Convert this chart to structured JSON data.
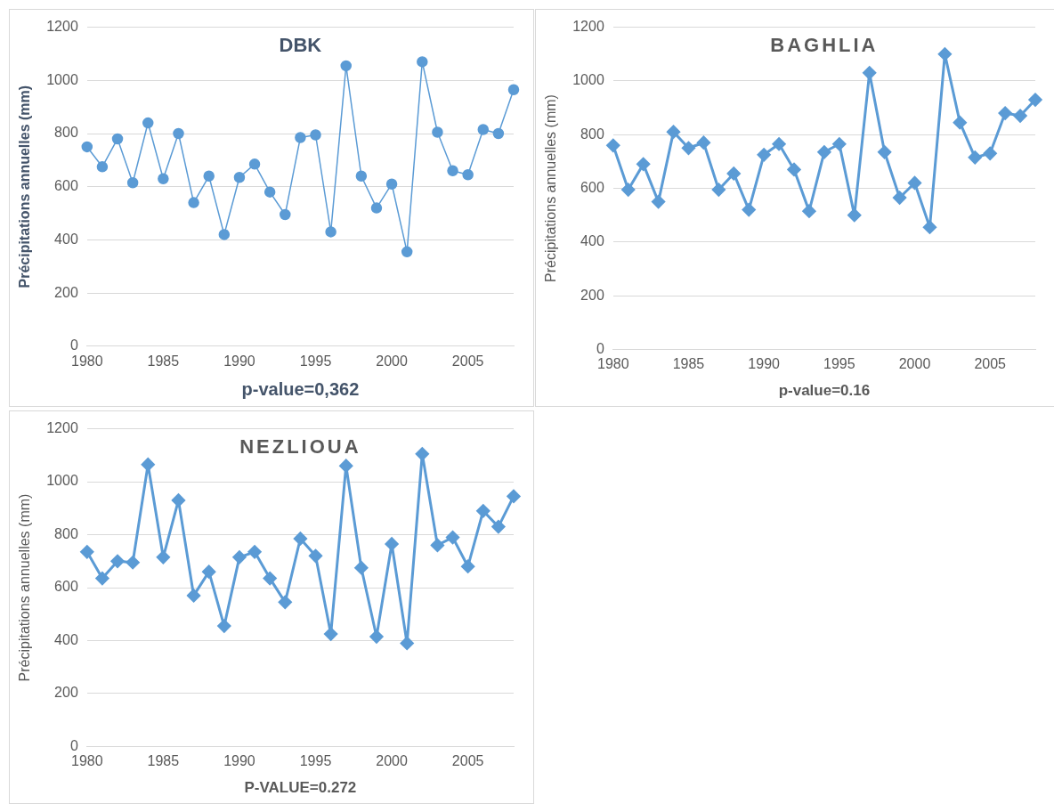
{
  "chart_data": [
    {
      "type": "line",
      "title": "DBK",
      "xlabel": "p-value=0,362",
      "ylabel": "Précipitations annuelles (mm)",
      "x": [
        1980,
        1981,
        1982,
        1983,
        1984,
        1985,
        1986,
        1987,
        1988,
        1989,
        1990,
        1991,
        1992,
        1993,
        1994,
        1995,
        1996,
        1997,
        1998,
        1999,
        2000,
        2001,
        2002,
        2003,
        2004,
        2005,
        2006,
        2007,
        2008
      ],
      "series": [
        {
          "color": "#5b9bd5",
          "values": [
            750,
            675,
            780,
            615,
            840,
            630,
            800,
            540,
            640,
            420,
            635,
            685,
            580,
            495,
            785,
            795,
            430,
            1055,
            640,
            520,
            610,
            355,
            1070,
            805,
            660,
            645,
            815,
            800,
            965
          ]
        }
      ],
      "xlim": [
        1980,
        2008
      ],
      "xticks": [
        1980,
        1985,
        1990,
        1995,
        2000,
        2005
      ],
      "ylim": [
        0,
        1200
      ],
      "yticks": [
        0,
        200,
        400,
        600,
        800,
        1000,
        1200
      ],
      "grid": "y",
      "legend": false,
      "marker": "circle",
      "line_style": "solid"
    },
    {
      "type": "line",
      "title": "BAGHLIA",
      "xlabel": "p-value=0.16",
      "ylabel": "Précipitations annuelles (mm)",
      "x": [
        1980,
        1981,
        1982,
        1983,
        1984,
        1985,
        1986,
        1987,
        1988,
        1989,
        1990,
        1991,
        1992,
        1993,
        1994,
        1995,
        1996,
        1997,
        1998,
        1999,
        2000,
        2001,
        2002,
        2003,
        2004,
        2005,
        2006,
        2007,
        2008
      ],
      "series": [
        {
          "color": "#5b9bd5",
          "values": [
            760,
            595,
            690,
            550,
            810,
            750,
            770,
            595,
            655,
            520,
            725,
            765,
            670,
            515,
            735,
            765,
            500,
            1030,
            735,
            565,
            620,
            455,
            1100,
            845,
            715,
            730,
            880,
            870,
            930
          ]
        }
      ],
      "xlim": [
        1980,
        2008
      ],
      "xticks": [
        1980,
        1985,
        1990,
        1995,
        2000,
        2005
      ],
      "ylim": [
        0,
        1200
      ],
      "yticks": [
        0,
        200,
        400,
        600,
        800,
        1000,
        1200
      ],
      "grid": "y",
      "legend": false,
      "marker": "diamond",
      "line_style": "solid"
    },
    {
      "type": "line",
      "title": "NEZLIOUA",
      "xlabel": "P-VALUE=0.272",
      "ylabel": "Précipitations annuelles (mm)",
      "x": [
        1980,
        1981,
        1982,
        1983,
        1984,
        1985,
        1986,
        1987,
        1988,
        1989,
        1990,
        1991,
        1992,
        1993,
        1994,
        1995,
        1996,
        1997,
        1998,
        1999,
        2000,
        2001,
        2002,
        2003,
        2004,
        2005,
        2006,
        2007,
        2008
      ],
      "series": [
        {
          "color": "#5b9bd5",
          "values": [
            735,
            635,
            700,
            695,
            1065,
            715,
            930,
            570,
            660,
            455,
            715,
            735,
            635,
            545,
            785,
            720,
            425,
            1060,
            675,
            415,
            765,
            390,
            1105,
            760,
            790,
            680,
            890,
            830,
            945
          ]
        }
      ],
      "xlim": [
        1980,
        2008
      ],
      "xticks": [
        1980,
        1985,
        1990,
        1995,
        2000,
        2005
      ],
      "ylim": [
        0,
        1200
      ],
      "yticks": [
        0,
        200,
        400,
        600,
        800,
        1000,
        1200
      ],
      "grid": "y",
      "legend": false,
      "marker": "diamond",
      "line_style": "solid"
    }
  ]
}
